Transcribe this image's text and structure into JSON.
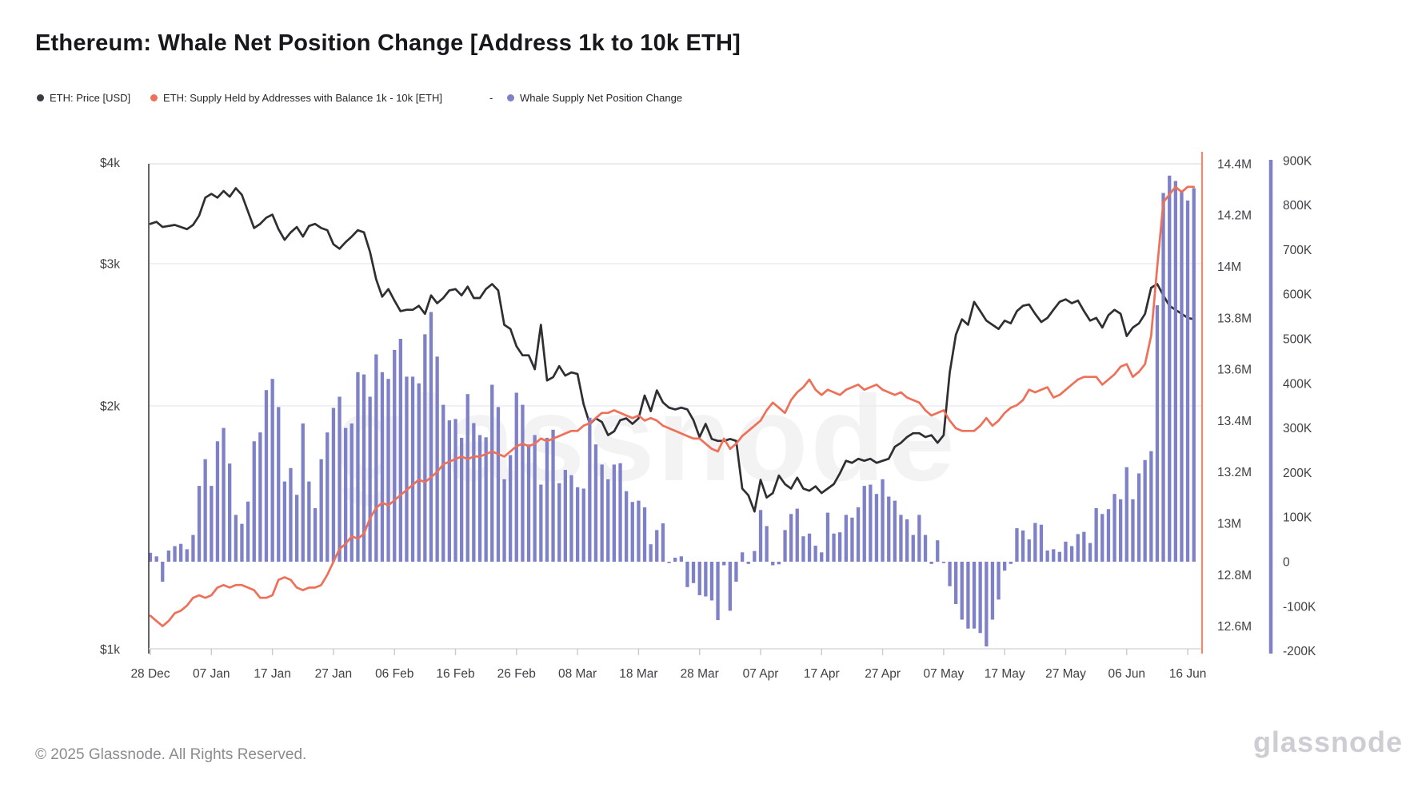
{
  "header": {
    "title": "Ethereum: Whale Net Position Change [Address 1k to 10k ETH]"
  },
  "legend": {
    "price_label": "ETH: Price [USD]",
    "supply_label": "ETH: Supply Held by Addresses with Balance 1k - 10k [ETH]",
    "separator": "-",
    "whale_label": "Whale Supply Net Position Change"
  },
  "footer": {
    "copyright": "© 2025 Glassnode. All Rights Reserved."
  },
  "watermark": {
    "center_text": "glassnode",
    "corner_text": "glassnode"
  },
  "colors": {
    "price_line": "#2e2e33",
    "supply_line": "#ee7058",
    "bars": "#7e81c8",
    "grid": "#ebebf0",
    "plot_border_top": "#e3e3ea",
    "axis_bottom": "#d8d8df",
    "left_axis_line": "#3c3c44",
    "right_border_salmon": "#f0876f",
    "right_axis_purple": "#7e81c8",
    "axis_text": "#3f3f46",
    "tick": "#c9c9d0"
  },
  "chart_data": {
    "type": "mixed: bar + 2 lines",
    "title": "Ethereum: Whale Net Position Change [Address 1k to 10k ETH]",
    "start_date": "28 Dec 2024",
    "interval": "daily",
    "x_tick_labels": [
      "28 Dec",
      "07 Jan",
      "17 Jan",
      "27 Jan",
      "06 Feb",
      "16 Feb",
      "26 Feb",
      "08 Mar",
      "18 Mar",
      "28 Mar",
      "07 Apr",
      "17 Apr",
      "27 Apr",
      "07 May",
      "17 May",
      "27 May",
      "06 Jun",
      "16 Jun"
    ],
    "price_axis": {
      "side": "left",
      "scale": "log",
      "tick_labels": [
        "$4k",
        "$3k",
        "$2k",
        "$1k"
      ],
      "tick_values_kusd": [
        4,
        3,
        2,
        1
      ]
    },
    "supply_axis": {
      "side": "right-inner",
      "tick_labels": [
        "14.4M",
        "14.2M",
        "14M",
        "13.8M",
        "13.6M",
        "13.4M",
        "13.2M",
        "13M",
        "12.8M",
        "12.6M"
      ],
      "tick_values_m": [
        14.4,
        14.2,
        14.0,
        13.8,
        13.6,
        13.4,
        13.2,
        13.0,
        12.8,
        12.6
      ]
    },
    "change_axis": {
      "side": "right-outer",
      "tick_labels": [
        "900K",
        "800K",
        "700K",
        "600K",
        "500K",
        "400K",
        "300K",
        "200K",
        "100K",
        "0",
        "-100K",
        "-200K"
      ],
      "tick_values_k": [
        900,
        800,
        700,
        600,
        500,
        400,
        300,
        200,
        100,
        0,
        -100,
        -200
      ]
    },
    "series": [
      {
        "name": "ETH: Price [USD]",
        "type": "line",
        "unit": "kUSD",
        "values": [
          3.36,
          3.38,
          3.33,
          3.34,
          3.35,
          3.33,
          3.31,
          3.35,
          3.44,
          3.62,
          3.66,
          3.62,
          3.69,
          3.63,
          3.72,
          3.65,
          3.48,
          3.32,
          3.36,
          3.42,
          3.45,
          3.31,
          3.21,
          3.28,
          3.33,
          3.24,
          3.34,
          3.36,
          3.32,
          3.3,
          3.17,
          3.13,
          3.19,
          3.24,
          3.3,
          3.28,
          3.1,
          2.87,
          2.73,
          2.79,
          2.7,
          2.62,
          2.63,
          2.63,
          2.66,
          2.6,
          2.74,
          2.68,
          2.72,
          2.78,
          2.79,
          2.74,
          2.81,
          2.72,
          2.72,
          2.79,
          2.83,
          2.78,
          2.52,
          2.49,
          2.37,
          2.31,
          2.31,
          2.22,
          2.52,
          2.15,
          2.17,
          2.24,
          2.18,
          2.2,
          2.19,
          2.01,
          1.9,
          1.93,
          1.91,
          1.84,
          1.86,
          1.92,
          1.93,
          1.9,
          1.93,
          2.06,
          1.97,
          2.09,
          2.02,
          1.99,
          1.98,
          1.99,
          1.98,
          1.92,
          1.83,
          1.9,
          1.82,
          1.81,
          1.81,
          1.82,
          1.81,
          1.58,
          1.55,
          1.48,
          1.62,
          1.54,
          1.56,
          1.64,
          1.6,
          1.58,
          1.63,
          1.58,
          1.57,
          1.59,
          1.56,
          1.58,
          1.6,
          1.65,
          1.71,
          1.7,
          1.72,
          1.71,
          1.72,
          1.7,
          1.71,
          1.72,
          1.78,
          1.8,
          1.83,
          1.85,
          1.85,
          1.83,
          1.84,
          1.8,
          1.84,
          2.2,
          2.45,
          2.56,
          2.52,
          2.69,
          2.62,
          2.55,
          2.52,
          2.49,
          2.55,
          2.53,
          2.62,
          2.66,
          2.67,
          2.6,
          2.54,
          2.57,
          2.63,
          2.69,
          2.71,
          2.68,
          2.7,
          2.62,
          2.55,
          2.57,
          2.5,
          2.59,
          2.63,
          2.6,
          2.44,
          2.5,
          2.53,
          2.6,
          2.8,
          2.83,
          2.74,
          2.66,
          2.63,
          2.6,
          2.57,
          2.56
        ]
      },
      {
        "name": "ETH: Supply Held by Addresses with Balance 1k - 10k [ETH]",
        "type": "line",
        "unit": "M ETH",
        "values": [
          12.64,
          12.62,
          12.6,
          12.62,
          12.65,
          12.66,
          12.68,
          12.71,
          12.72,
          12.71,
          12.72,
          12.75,
          12.76,
          12.75,
          12.76,
          12.76,
          12.75,
          12.74,
          12.71,
          12.71,
          12.72,
          12.78,
          12.79,
          12.78,
          12.75,
          12.74,
          12.75,
          12.75,
          12.76,
          12.8,
          12.85,
          12.9,
          12.92,
          12.95,
          12.94,
          12.96,
          13.02,
          13.06,
          13.08,
          13.07,
          13.09,
          13.11,
          13.13,
          13.15,
          13.17,
          13.16,
          13.18,
          13.2,
          13.23,
          13.24,
          13.25,
          13.26,
          13.25,
          13.26,
          13.26,
          13.27,
          13.28,
          13.27,
          13.26,
          13.28,
          13.3,
          13.31,
          13.3,
          13.31,
          13.33,
          13.32,
          13.33,
          13.34,
          13.35,
          13.36,
          13.36,
          13.38,
          13.39,
          13.41,
          13.43,
          13.43,
          13.44,
          13.43,
          13.42,
          13.41,
          13.42,
          13.4,
          13.41,
          13.4,
          13.38,
          13.37,
          13.36,
          13.35,
          13.34,
          13.33,
          13.33,
          13.31,
          13.29,
          13.28,
          13.33,
          13.29,
          13.31,
          13.34,
          13.36,
          13.38,
          13.4,
          13.44,
          13.47,
          13.45,
          13.43,
          13.48,
          13.51,
          13.53,
          13.56,
          13.52,
          13.5,
          13.52,
          13.51,
          13.5,
          13.52,
          13.53,
          13.54,
          13.52,
          13.53,
          13.54,
          13.52,
          13.51,
          13.5,
          13.51,
          13.49,
          13.48,
          13.47,
          13.44,
          13.42,
          13.43,
          13.44,
          13.4,
          13.37,
          13.36,
          13.36,
          13.36,
          13.38,
          13.41,
          13.38,
          13.4,
          13.43,
          13.45,
          13.46,
          13.48,
          13.52,
          13.51,
          13.52,
          13.53,
          13.49,
          13.5,
          13.52,
          13.54,
          13.56,
          13.57,
          13.57,
          13.57,
          13.54,
          13.56,
          13.58,
          13.61,
          13.62,
          13.57,
          13.59,
          13.62,
          13.73,
          14.0,
          14.25,
          14.28,
          14.31,
          14.29,
          14.31,
          14.31
        ]
      },
      {
        "name": "Whale Supply Net Position Change",
        "type": "bar",
        "unit": "K ETH",
        "values": [
          20,
          12,
          -45,
          25,
          35,
          40,
          28,
          60,
          170,
          230,
          170,
          270,
          300,
          220,
          105,
          85,
          135,
          270,
          290,
          385,
          410,
          347,
          180,
          210,
          150,
          310,
          180,
          120,
          230,
          290,
          345,
          370,
          300,
          310,
          425,
          420,
          370,
          465,
          425,
          410,
          475,
          500,
          415,
          415,
          400,
          510,
          560,
          460,
          352,
          317,
          320,
          278,
          376,
          311,
          284,
          279,
          397,
          347,
          185,
          239,
          379,
          352,
          263,
          284,
          173,
          278,
          296,
          176,
          206,
          194,
          167,
          164,
          323,
          263,
          218,
          185,
          218,
          221,
          158,
          134,
          137,
          122,
          39,
          71,
          86,
          -3,
          9,
          12,
          -57,
          -48,
          -75,
          -78,
          -87,
          -131,
          -8,
          -110,
          -45,
          21,
          -5,
          24,
          116,
          80,
          -8,
          -6,
          71,
          107,
          119,
          57,
          63,
          36,
          21,
          110,
          63,
          66,
          105,
          99,
          122,
          170,
          173,
          152,
          185,
          146,
          137,
          105,
          95,
          60,
          105,
          60,
          -5,
          48,
          -3,
          -55,
          -95,
          -130,
          -150,
          -150,
          -160,
          -190,
          -130,
          -85,
          -20,
          -5,
          75,
          70,
          50,
          87,
          83,
          25,
          28,
          22,
          45,
          35,
          62,
          67,
          42,
          120,
          107,
          118,
          152,
          140,
          212,
          140,
          198,
          228,
          248,
          575,
          827,
          866,
          854,
          833,
          810,
          838
        ]
      }
    ],
    "layout_hints": {
      "grid": "horizontal lines at $3k and $2k only",
      "legend_position": "top-left row",
      "bar_zero_at_y": "lower third",
      "price_peak_annotation": "none"
    }
  }
}
